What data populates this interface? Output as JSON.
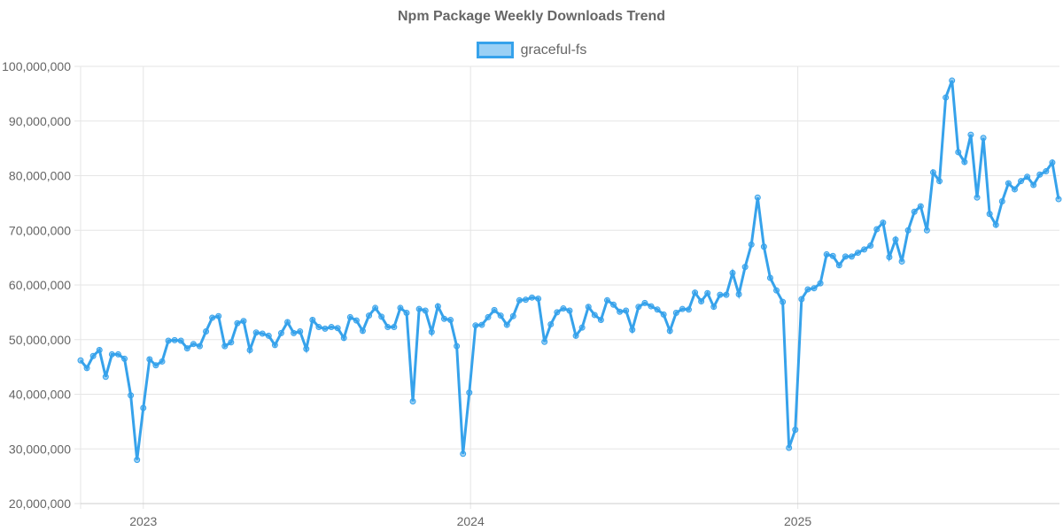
{
  "chart_data": {
    "type": "line",
    "title": "Npm Package Weekly Downloads Trend",
    "xlabel": "",
    "ylabel": "",
    "ylim": [
      20000000,
      100000000
    ],
    "y_ticks": [
      {
        "value": 100000000,
        "label": "100,000,000"
      },
      {
        "value": 90000000,
        "label": "90,000,000"
      },
      {
        "value": 80000000,
        "label": "80,000,000"
      },
      {
        "value": 70000000,
        "label": "70,000,000"
      },
      {
        "value": 60000000,
        "label": "60,000,000"
      },
      {
        "value": 50000000,
        "label": "50,000,000"
      },
      {
        "value": 40000000,
        "label": "40,000,000"
      },
      {
        "value": 30000000,
        "label": "30,000,000"
      },
      {
        "value": 20000000,
        "label": "20,000,000"
      }
    ],
    "x_unit": "week index",
    "xlim": [
      0,
      156
    ],
    "x_ticks": [
      {
        "value": 10,
        "label": "2023"
      },
      {
        "value": 62.2,
        "label": "2024"
      },
      {
        "value": 114.4,
        "label": "2025"
      }
    ],
    "grid": true,
    "legend_position": "top-center",
    "series": [
      {
        "name": "graceful-fs",
        "color": "#36a2eb",
        "values_millions": [
          46.2,
          44.8,
          47.0,
          48.1,
          43.2,
          47.3,
          47.3,
          46.5,
          39.8,
          28.0,
          37.5,
          46.4,
          45.3,
          46.0,
          49.8,
          49.9,
          49.8,
          48.4,
          49.2,
          48.8,
          51.5,
          54.0,
          54.3,
          48.8,
          49.5,
          53.0,
          53.4,
          48.1,
          51.3,
          51.1,
          50.7,
          49.0,
          51.2,
          53.2,
          51.2,
          51.5,
          48.3,
          53.6,
          52.3,
          52.0,
          52.3,
          52.1,
          50.3,
          54.1,
          53.5,
          51.6,
          54.4,
          55.8,
          54.2,
          52.3,
          52.3,
          55.8,
          54.9,
          38.7,
          55.6,
          55.3,
          51.4,
          56.1,
          53.8,
          53.6,
          48.8,
          29.1,
          40.3,
          52.6,
          52.7,
          54.1,
          55.4,
          54.4,
          52.7,
          54.3,
          57.2,
          57.3,
          57.7,
          57.5,
          49.6,
          52.8,
          55.0,
          55.7,
          55.3,
          50.7,
          52.2,
          56.0,
          54.5,
          53.6,
          57.2,
          56.4,
          55.1,
          55.3,
          51.8,
          56.0,
          56.7,
          56.1,
          55.5,
          54.6,
          51.6,
          54.9,
          55.6,
          55.5,
          58.6,
          57.0,
          58.5,
          56.0,
          58.2,
          58.2,
          62.2,
          58.3,
          63.3,
          67.4,
          76.0,
          67.0,
          61.3,
          59.0,
          56.9,
          30.2,
          33.5,
          57.4,
          59.2,
          59.4,
          60.3,
          65.6,
          65.3,
          63.6,
          65.2,
          65.2,
          65.9,
          66.5,
          67.2,
          70.2,
          71.4,
          65.1,
          68.3,
          64.3,
          70.0,
          73.4,
          74.4,
          70.0,
          80.6,
          79.0,
          94.3,
          97.4,
          84.3,
          82.5,
          87.5,
          76.0,
          86.9,
          73.0,
          71.0,
          75.3,
          78.6,
          77.5,
          79.0,
          79.8,
          78.3,
          80.2,
          80.8,
          82.4,
          75.7
        ]
      }
    ]
  }
}
